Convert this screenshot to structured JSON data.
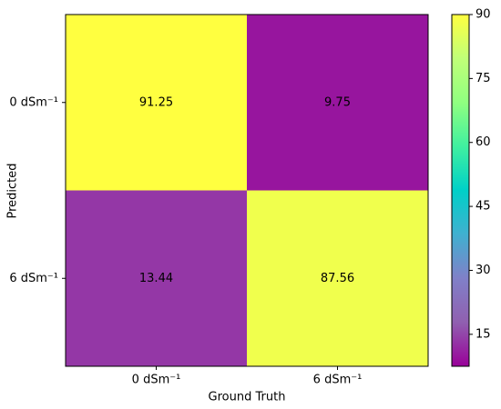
{
  "chart_data": {
    "type": "heatmap",
    "x_label": "Ground Truth",
    "y_label": "Predicted",
    "x_categories": [
      "0 dSm⁻¹",
      "6 dSm⁻¹"
    ],
    "y_categories": [
      "0 dSm⁻¹",
      "6 dSm⁻¹"
    ],
    "values": [
      [
        91.25,
        9.75
      ],
      [
        13.44,
        87.56
      ]
    ],
    "colorscale": [
      "#990099",
      "#9060b0",
      "#8080c8",
      "#40b0d0",
      "#00d0c8",
      "#40f0a0",
      "#90ff80",
      "#c0ff78",
      "#ffff40"
    ],
    "clim": [
      7.5,
      90
    ],
    "cticks": [
      15,
      30,
      45,
      60,
      75,
      90
    ]
  }
}
